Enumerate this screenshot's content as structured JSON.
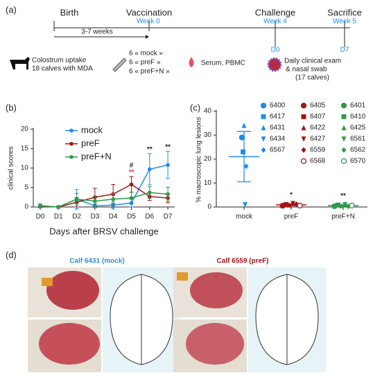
{
  "panel_a": {
    "label": "(a)",
    "events": [
      {
        "name": "Birth"
      },
      {
        "name": "Vaccination",
        "week": "Week 0"
      },
      {
        "name": "Challenge",
        "week": "Week 4",
        "day": "D0"
      },
      {
        "name": "Sacrifice",
        "week": "Week 5",
        "day": "D7"
      }
    ],
    "interval": "3-7 weeks",
    "colostrum": [
      "Colostrum uptake",
      "18 calves with MDA"
    ],
    "groups": [
      "6 « mock »",
      "6 « preF »",
      "6 « preF+N »"
    ],
    "samples": "Serum, PBMC",
    "monitoring": [
      "Daily clinical exam",
      "& nasal swab",
      "(17 calves)"
    ]
  },
  "chart_data": [
    {
      "panel": "(b)",
      "type": "line",
      "ylabel": "clinical scores",
      "xlabel": "Days after BRSV challenge",
      "categories": [
        "D0",
        "D1",
        "D2",
        "D3",
        "D4",
        "D5",
        "D6",
        "D7"
      ],
      "ylim": [
        0,
        20
      ],
      "yticks": [
        0,
        5,
        10,
        15,
        20
      ],
      "series": [
        {
          "name": "mock",
          "color": "#1f8ceb",
          "values": [
            0.3,
            0,
            2.0,
            0.3,
            0.5,
            1.0,
            9.7,
            10.8
          ],
          "errors": [
            0.5,
            0.3,
            2.5,
            0.5,
            0.8,
            1.0,
            4.0,
            3.5
          ]
        },
        {
          "name": "preF",
          "color": "#a31515",
          "values": [
            0.3,
            0,
            1.2,
            2.5,
            3.3,
            5.8,
            2.7,
            2.3
          ],
          "errors": [
            0.5,
            0.3,
            1.2,
            2.3,
            2.5,
            2.0,
            1.0,
            1.2
          ]
        },
        {
          "name": "preF+N",
          "color": "#2e9a4a",
          "values": [
            0.3,
            0,
            2.0,
            1.5,
            2.0,
            2.3,
            3.7,
            3.3
          ],
          "errors": [
            0.5,
            0.3,
            1.5,
            1.3,
            1.5,
            1.5,
            1.5,
            1.8
          ]
        }
      ],
      "annotations": [
        {
          "text": "**",
          "at": "D5",
          "color": "#e0404a"
        },
        {
          "text": "#",
          "at": "D5",
          "color": "#222222"
        },
        {
          "text": "**",
          "at": "D6",
          "color": "#222222"
        },
        {
          "text": "**",
          "at": "D7",
          "color": "#222222"
        }
      ]
    },
    {
      "panel": "(c)",
      "type": "scatter",
      "ylabel": "% macroscopic lung lesions",
      "categories": [
        "mock",
        "preF",
        "preF+N"
      ],
      "ylim": [
        0,
        40
      ],
      "yticks": [
        0,
        10,
        20,
        30,
        40
      ],
      "groups": [
        {
          "color": "#1f8ceb",
          "mean": 21,
          "sd": 10.5,
          "points": [
            {
              "id": "6400",
              "marker": "circle",
              "value": 29
            },
            {
              "id": "6417",
              "marker": "square",
              "value": 23
            },
            {
              "id": "6431",
              "marker": "triangle",
              "value": 34
            },
            {
              "id": "6434",
              "marker": "triangle-down",
              "value": 1
            },
            {
              "id": "6567",
              "marker": "diamond",
              "value": 17
            }
          ]
        },
        {
          "color": "#a31515",
          "mean": 0.9,
          "sd": 0.4,
          "points": [
            {
              "id": "6405",
              "marker": "circle",
              "value": 0.5
            },
            {
              "id": "6407",
              "marker": "square",
              "value": 1.0
            },
            {
              "id": "6422",
              "marker": "triangle",
              "value": 0.8
            },
            {
              "id": "6427",
              "marker": "triangle-down",
              "value": 1.5
            },
            {
              "id": "6559",
              "marker": "diamond",
              "value": 1.2
            },
            {
              "id": "6568",
              "marker": "open-circle",
              "value": 0.6
            }
          ]
        },
        {
          "color": "#2e9a4a",
          "mean": 0.6,
          "sd": 0.3,
          "points": [
            {
              "id": "6401",
              "marker": "circle",
              "value": 0.3
            },
            {
              "id": "6410",
              "marker": "square",
              "value": 0.8
            },
            {
              "id": "6425",
              "marker": "triangle",
              "value": 0.5
            },
            {
              "id": "6561",
              "marker": "triangle-down",
              "value": 1.0
            },
            {
              "id": "6562",
              "marker": "diamond",
              "value": 0.2
            },
            {
              "id": "6570",
              "marker": "open-circle",
              "value": 0.6
            }
          ]
        }
      ],
      "annotations": [
        {
          "text": "*",
          "at": "preF"
        },
        {
          "text": "**",
          "at": "preF+N"
        }
      ]
    }
  ],
  "panel_d": {
    "label": "(d)",
    "calves": [
      {
        "title": "Calf 6431 (mock)",
        "color": "#2f8fd8"
      },
      {
        "title": "Calf 6559 (preF)",
        "color": "#a0171c"
      }
    ]
  }
}
